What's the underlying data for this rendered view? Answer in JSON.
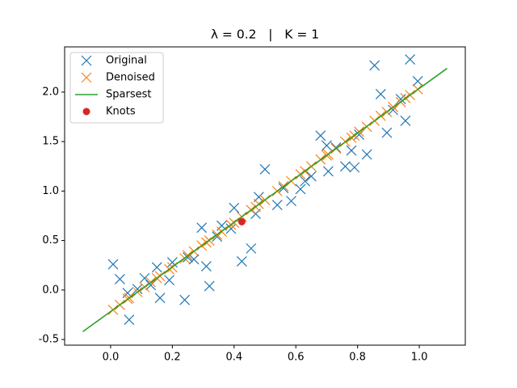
{
  "chart_data": {
    "type": "scatter",
    "title": "λ = 0.2   |   K = 1",
    "xlim": [
      -0.149,
      1.149
    ],
    "ylim": [
      -0.557,
      2.457
    ],
    "xticks": [
      {
        "value": 0,
        "label": "0.0"
      },
      0.2,
      0.4,
      0.6,
      0.8,
      {
        "value": 1,
        "label": "1.0"
      }
    ],
    "yticks": [
      -0.5,
      {
        "value": 0,
        "label": "0.0"
      },
      0.5,
      {
        "value": 1,
        "label": "1.0"
      },
      1.5,
      {
        "value": 2,
        "label": "2.0"
      }
    ],
    "legend": "upper left",
    "series": [
      {
        "name": "Original",
        "color": "#1f77b4",
        "marker": "x",
        "x": [
          0.008,
          0.03,
          0.06,
          0.055,
          0.087,
          0.11,
          0.13,
          0.15,
          0.16,
          0.19,
          0.2,
          0.24,
          0.25,
          0.27,
          0.295,
          0.31,
          0.32,
          0.345,
          0.36,
          0.39,
          0.4,
          0.425,
          0.455,
          0.47,
          0.48,
          0.5,
          0.54,
          0.56,
          0.585,
          0.615,
          0.63,
          0.65,
          0.68,
          0.7,
          0.705,
          0.73,
          0.76,
          0.78,
          0.79,
          0.805,
          0.83,
          0.855,
          0.875,
          0.895,
          0.915,
          0.94,
          0.955,
          0.97,
          0.995
        ],
        "values": [
          0.26,
          0.11,
          -0.3,
          -0.03,
          0.01,
          0.12,
          0.05,
          0.23,
          -0.08,
          0.1,
          0.28,
          -0.1,
          0.33,
          0.31,
          0.63,
          0.24,
          0.04,
          0.54,
          0.65,
          0.62,
          0.83,
          0.29,
          0.42,
          0.77,
          0.94,
          1.22,
          0.86,
          1.03,
          0.9,
          1.02,
          1.1,
          1.15,
          1.56,
          1.46,
          1.2,
          1.44,
          1.25,
          1.41,
          1.24,
          1.57,
          1.37,
          2.27,
          1.98,
          1.59,
          1.82,
          1.93,
          1.71,
          2.33,
          2.11
        ]
      },
      {
        "name": "Denoised",
        "color": "#ff7f0e",
        "marker": "x",
        "x": [
          0.008,
          0.03,
          0.06,
          0.055,
          0.087,
          0.11,
          0.13,
          0.15,
          0.16,
          0.19,
          0.2,
          0.24,
          0.25,
          0.27,
          0.295,
          0.31,
          0.32,
          0.345,
          0.36,
          0.39,
          0.4,
          0.425,
          0.455,
          0.47,
          0.48,
          0.5,
          0.54,
          0.56,
          0.585,
          0.615,
          0.63,
          0.65,
          0.68,
          0.7,
          0.705,
          0.73,
          0.76,
          0.78,
          0.79,
          0.805,
          0.83,
          0.855,
          0.875,
          0.895,
          0.915,
          0.94,
          0.955,
          0.97,
          0.995
        ],
        "values": [
          -0.2,
          -0.15,
          -0.08,
          -0.09,
          -0.02,
          0.03,
          0.08,
          0.12,
          0.14,
          0.21,
          0.23,
          0.32,
          0.35,
          0.39,
          0.45,
          0.48,
          0.5,
          0.56,
          0.59,
          0.66,
          0.68,
          0.74,
          0.81,
          0.84,
          0.87,
          0.91,
          1.0,
          1.05,
          1.1,
          1.17,
          1.2,
          1.25,
          1.32,
          1.36,
          1.37,
          1.43,
          1.5,
          1.54,
          1.56,
          1.6,
          1.65,
          1.71,
          1.76,
          1.8,
          1.85,
          1.9,
          1.94,
          1.97,
          2.03
        ]
      },
      {
        "name": "Sparsest",
        "color": "#2ca02c",
        "marker": "line",
        "x": [
          -0.09,
          1.09
        ],
        "values": [
          -0.42,
          2.24
        ]
      },
      {
        "name": "Knots",
        "color": "#d62728",
        "marker": "o",
        "x": [
          0.425
        ],
        "values": [
          0.69
        ]
      }
    ]
  }
}
